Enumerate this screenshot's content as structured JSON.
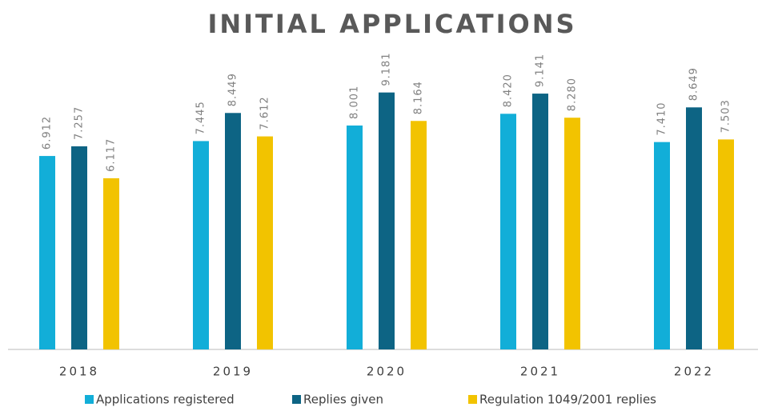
{
  "chart_data": {
    "type": "bar",
    "title": "INITIAL APPLICATIONS",
    "categories": [
      "2018",
      "2019",
      "2020",
      "2021",
      "2022"
    ],
    "series": [
      {
        "name": "Applications registered",
        "color": "#12aed8",
        "values": [
          6912,
          7445,
          8001,
          8420,
          7410
        ],
        "value_labels": [
          "6.912",
          "7.445",
          "8.001",
          "8.420",
          "7.410"
        ]
      },
      {
        "name": "Replies given",
        "color": "#0d6484",
        "values": [
          7257,
          8449,
          9181,
          9141,
          8649
        ],
        "value_labels": [
          "7.257",
          "8.449",
          "9.181",
          "9.141",
          "8.649"
        ]
      },
      {
        "name": "Regulation 1049/2001 replies",
        "color": "#f2c300",
        "values": [
          6117,
          7612,
          8164,
          8280,
          7503
        ],
        "value_labels": [
          "6.117",
          "7.612",
          "8.164",
          "8.280",
          "7.503"
        ]
      }
    ],
    "ylim": [
      0,
      10000
    ],
    "legend": "bottom"
  }
}
